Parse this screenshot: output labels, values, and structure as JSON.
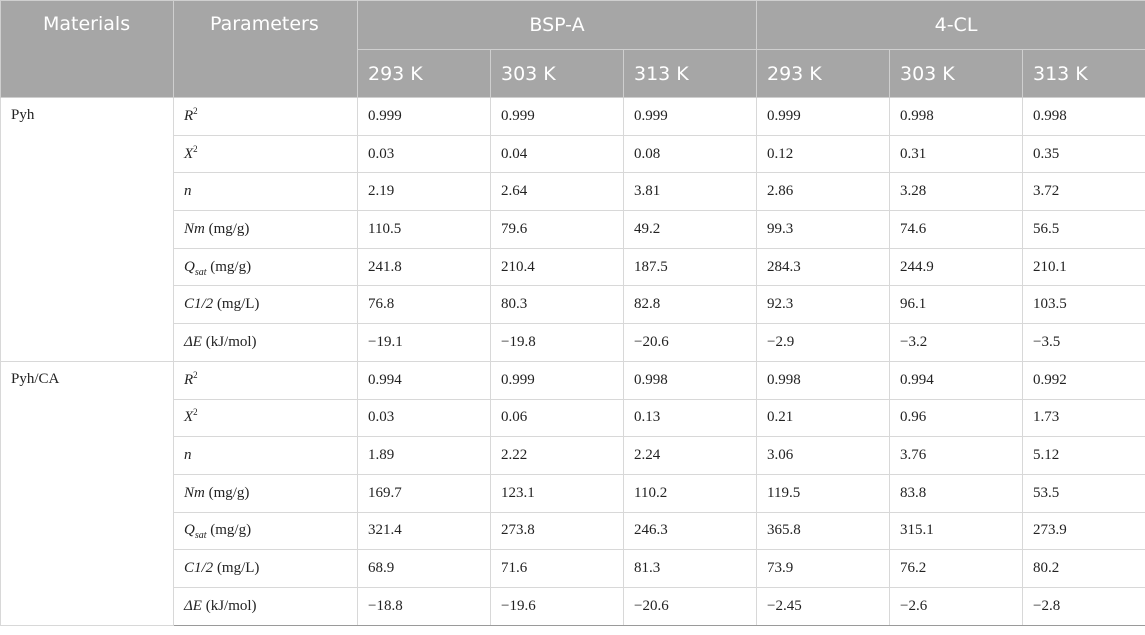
{
  "header": {
    "materials": "Materials",
    "parameters": "Parameters",
    "groups": [
      "BSP-A",
      "4-CL"
    ],
    "temps": [
      "293 K",
      "303 K",
      "313 K",
      "293 K",
      "303 K",
      "313 K"
    ]
  },
  "materials": [
    {
      "name": "Pyh",
      "rows": [
        {
          "sym": "R",
          "sup": "2",
          "sub": "",
          "unit": "",
          "values": [
            "0.999",
            "0.999",
            "0.999",
            "0.999",
            "0.998",
            "0.998"
          ]
        },
        {
          "sym": "X",
          "sup": "2",
          "sub": "",
          "unit": "",
          "values": [
            "0.03",
            "0.04",
            "0.08",
            "0.12",
            "0.31",
            "0.35"
          ]
        },
        {
          "sym": "n",
          "sup": "",
          "sub": "",
          "unit": "",
          "values": [
            "2.19",
            "2.64",
            "3.81",
            "2.86",
            "3.28",
            "3.72"
          ]
        },
        {
          "sym": "Nm",
          "sup": "",
          "sub": "",
          "unit": " (mg/g)",
          "values": [
            "110.5",
            "79.6",
            "49.2",
            "99.3",
            "74.6",
            "56.5"
          ]
        },
        {
          "sym": "Q",
          "sup": "",
          "sub": "sat",
          "unit": " (mg/g)",
          "values": [
            "241.8",
            "210.4",
            "187.5",
            "284.3",
            "244.9",
            "210.1"
          ]
        },
        {
          "sym": "C1/2",
          "sup": "",
          "sub": "",
          "unit": " (mg/L)",
          "values": [
            "76.8",
            "80.3",
            "82.8",
            "92.3",
            "96.1",
            "103.5"
          ]
        },
        {
          "sym": "ΔE",
          "sup": "",
          "sub": "",
          "unit": " (kJ/mol)",
          "values": [
            "−19.1",
            "−19.8",
            "−20.6",
            "−2.9",
            "−3.2",
            "−3.5"
          ]
        }
      ]
    },
    {
      "name": "Pyh/CA",
      "rows": [
        {
          "sym": "R",
          "sup": "2",
          "sub": "",
          "unit": "",
          "values": [
            "0.994",
            "0.999",
            "0.998",
            "0.998",
            "0.994",
            "0.992"
          ]
        },
        {
          "sym": "X",
          "sup": "2",
          "sub": "",
          "unit": "",
          "values": [
            "0.03",
            "0.06",
            "0.13",
            "0.21",
            "0.96",
            "1.73"
          ]
        },
        {
          "sym": "n",
          "sup": "",
          "sub": "",
          "unit": "",
          "values": [
            "1.89",
            "2.22",
            "2.24",
            "3.06",
            "3.76",
            "5.12"
          ]
        },
        {
          "sym": "Nm",
          "sup": "",
          "sub": "",
          "unit": " (mg/g)",
          "values": [
            "169.7",
            "123.1",
            "110.2",
            "119.5",
            "83.8",
            "53.5"
          ]
        },
        {
          "sym": "Q",
          "sup": "",
          "sub": "sat",
          "unit": " (mg/g)",
          "values": [
            "321.4",
            "273.8",
            "246.3",
            "365.8",
            "315.1",
            "273.9"
          ]
        },
        {
          "sym": "C1/2",
          "sup": "",
          "sub": "",
          "unit": " (mg/L)",
          "values": [
            "68.9",
            "71.6",
            "81.3",
            "73.9",
            "76.2",
            "80.2"
          ]
        },
        {
          "sym": "ΔE",
          "sup": "",
          "sub": "",
          "unit": " (kJ/mol)",
          "values": [
            "−18.8",
            "−19.6",
            "−20.6",
            "−2.45",
            "−2.6",
            "−2.8"
          ]
        }
      ]
    }
  ]
}
